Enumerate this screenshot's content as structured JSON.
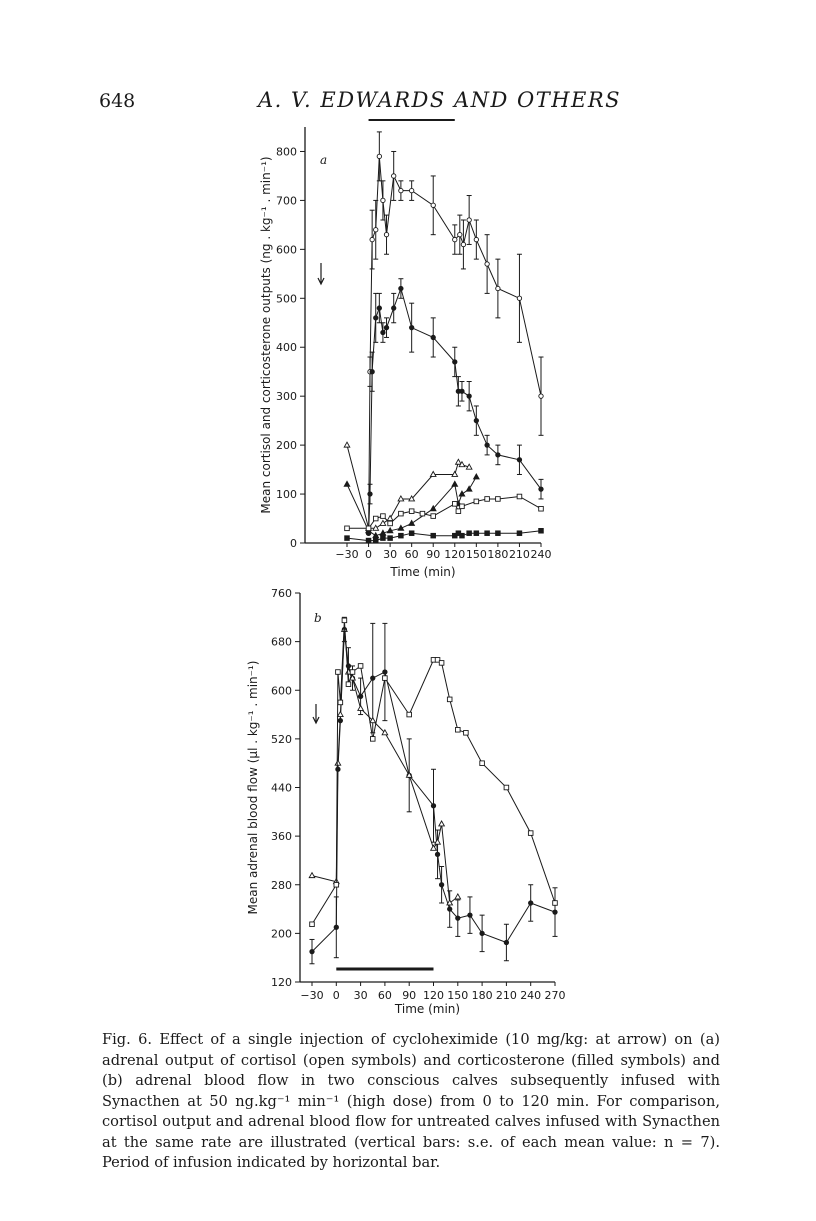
{
  "page": {
    "number": "648",
    "running_head": "A. V. EDWARDS AND OTHERS"
  },
  "caption": {
    "label": "Fig. 6.",
    "text": "Effect of a single injection of cycloheximide (10 mg/kg: at arrow) on (a) adrenal output of cortisol (open symbols) and corticosterone (filled symbols) and (b) adrenal blood flow in two conscious calves subsequently infused with Synacthen at 50 ng.kg⁻¹ min⁻¹ (high dose) from 0 to 120 min. For comparison, cortisol output and adrenal blood flow for untreated calves infused with Synacthen at the same rate are illustrated (vertical bars: s.e. of each mean value: n = 7). Period of infusion indicated by horizontal bar."
  },
  "chart_data": [
    {
      "panel": "a",
      "type": "line",
      "ylabel": "Mean cortisol and corticosterone outputs (ng . kg⁻¹ . min⁻¹)",
      "xlabel": "Time (min)",
      "xlim": [
        -30,
        240
      ],
      "ylim": [
        0,
        850
      ],
      "x_ticks": [
        -30,
        0,
        30,
        60,
        90,
        120,
        150,
        180,
        210,
        240
      ],
      "x_tick_labels": [
        "−30",
        "0",
        "30",
        "60",
        "90",
        "120",
        "150",
        "180",
        "210",
        "240"
      ],
      "y_ticks": [
        0,
        100,
        200,
        300,
        400,
        500,
        600,
        700,
        800
      ],
      "infusion_bar": [
        0,
        120
      ],
      "arrow_at_x": -30,
      "series": [
        {
          "marker": "open-circle",
          "filled": false,
          "x": [
            0,
            2,
            5,
            10,
            15,
            20,
            25,
            35,
            45,
            60,
            90,
            120,
            127,
            132,
            140,
            150,
            165,
            180,
            210,
            240
          ],
          "y": [
            20,
            350,
            620,
            640,
            790,
            700,
            630,
            750,
            720,
            720,
            690,
            620,
            630,
            610,
            660,
            620,
            570,
            520,
            500,
            300
          ],
          "err": [
            0,
            30,
            60,
            60,
            50,
            40,
            40,
            50,
            20,
            20,
            60,
            30,
            40,
            50,
            50,
            40,
            60,
            60,
            90,
            80
          ]
        },
        {
          "marker": "filled-circle",
          "filled": true,
          "x": [
            0,
            2,
            5,
            10,
            15,
            20,
            25,
            35,
            45,
            60,
            90,
            120,
            125,
            130,
            140,
            150,
            165,
            180,
            210,
            240
          ],
          "y": [
            20,
            100,
            350,
            460,
            480,
            430,
            440,
            480,
            520,
            440,
            420,
            370,
            310,
            310,
            300,
            250,
            200,
            180,
            170,
            110
          ],
          "err": [
            0,
            20,
            40,
            50,
            30,
            20,
            20,
            30,
            20,
            50,
            40,
            30,
            30,
            20,
            30,
            30,
            20,
            20,
            30,
            20
          ]
        },
        {
          "marker": "open-triangle",
          "filled": false,
          "x": [
            -30,
            0,
            10,
            20,
            30,
            45,
            60,
            90,
            120,
            125,
            130,
            140,
            150,
            165,
            180
          ],
          "y": [
            200,
            30,
            30,
            40,
            50,
            90,
            90,
            140,
            140,
            165,
            160,
            155,
            null,
            null,
            null
          ]
        },
        {
          "marker": "filled-triangle",
          "filled": true,
          "x": [
            -30,
            0,
            10,
            20,
            30,
            45,
            60,
            90,
            120,
            125,
            130,
            140,
            150
          ],
          "y": [
            120,
            25,
            15,
            20,
            25,
            30,
            40,
            70,
            120,
            80,
            100,
            110,
            135
          ]
        },
        {
          "marker": "open-square",
          "filled": false,
          "x": [
            -30,
            0,
            10,
            20,
            30,
            45,
            60,
            75,
            90,
            120,
            125,
            130,
            150,
            165,
            180,
            210,
            240
          ],
          "y": [
            30,
            30,
            50,
            55,
            40,
            60,
            65,
            60,
            55,
            80,
            65,
            75,
            85,
            90,
            90,
            95,
            70
          ]
        },
        {
          "marker": "filled-square",
          "filled": true,
          "x": [
            -30,
            0,
            10,
            20,
            30,
            45,
            60,
            90,
            120,
            125,
            130,
            140,
            150,
            165,
            180,
            210,
            240
          ],
          "y": [
            10,
            5,
            5,
            10,
            10,
            15,
            20,
            15,
            15,
            20,
            15,
            20,
            20,
            20,
            20,
            20,
            25
          ]
        }
      ]
    },
    {
      "panel": "b",
      "type": "line",
      "ylabel": "Mean adrenal blood flow (μl . kg⁻¹ . min⁻¹)",
      "xlabel": "Time (min)",
      "xlim": [
        -30,
        270
      ],
      "ylim": [
        120,
        760
      ],
      "x_ticks": [
        -30,
        0,
        30,
        60,
        90,
        120,
        150,
        180,
        210,
        240,
        270
      ],
      "x_tick_labels": [
        "−30",
        "0",
        "30",
        "60",
        "90",
        "120",
        "150",
        "180",
        "210",
        "240",
        "270"
      ],
      "y_ticks": [
        120,
        200,
        280,
        360,
        440,
        520,
        600,
        680,
        760
      ],
      "infusion_bar": [
        0,
        120
      ],
      "arrow_at_x": -30,
      "series": [
        {
          "marker": "filled-circle",
          "filled": true,
          "x": [
            -30,
            0,
            2,
            5,
            10,
            15,
            20,
            30,
            45,
            60,
            90,
            120,
            125,
            130,
            140,
            150,
            165,
            180,
            210,
            240,
            270
          ],
          "y": [
            170,
            210,
            470,
            550,
            700,
            640,
            620,
            590,
            620,
            630,
            460,
            410,
            330,
            280,
            240,
            225,
            230,
            200,
            185,
            250,
            235
          ],
          "err": [
            20,
            50,
            0,
            0,
            20,
            30,
            20,
            30,
            90,
            80,
            60,
            60,
            40,
            30,
            30,
            30,
            30,
            30,
            30,
            30,
            40
          ]
        },
        {
          "marker": "open-triangle",
          "filled": false,
          "x": [
            -30,
            0,
            2,
            5,
            10,
            15,
            20,
            30,
            45,
            60,
            90,
            120,
            125,
            130,
            140,
            150
          ],
          "y": [
            295,
            285,
            480,
            560,
            700,
            630,
            620,
            570,
            550,
            530,
            460,
            340,
            350,
            380,
            250,
            260
          ]
        },
        {
          "marker": "open-square",
          "filled": false,
          "x": [
            -30,
            0,
            2,
            5,
            10,
            15,
            20,
            30,
            45,
            60,
            90,
            120,
            125,
            130,
            140,
            150,
            160,
            180,
            210,
            240,
            270
          ],
          "y": [
            215,
            280,
            630,
            580,
            715,
            610,
            630,
            640,
            520,
            620,
            560,
            650,
            650,
            645,
            585,
            535,
            530,
            480,
            440,
            365,
            250
          ]
        }
      ]
    }
  ]
}
